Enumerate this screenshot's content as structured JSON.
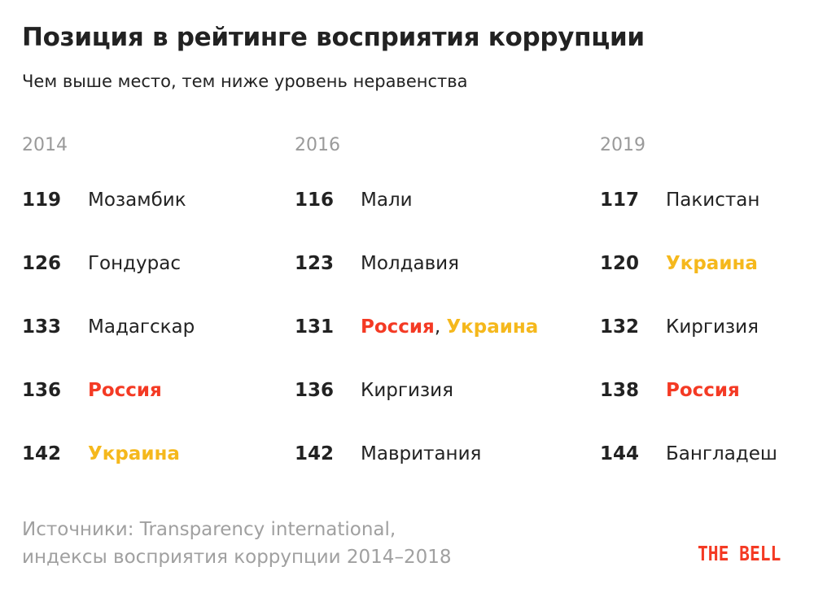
{
  "title": "Позиция в рейтинге восприятия коррупции",
  "subtitle": "Чем выше место, тем ниже уровень неравенства",
  "colors": {
    "russia": "#f43a24",
    "ukraine": "#f5b81c",
    "text": "#222222",
    "muted": "#9a9a9a",
    "logo": "#f43a24"
  },
  "chart_data": {
    "type": "table",
    "columns": [
      {
        "year": "2014",
        "rows": [
          {
            "rank": "119",
            "parts": [
              {
                "text": "Мозамбик"
              }
            ]
          },
          {
            "rank": "126",
            "parts": [
              {
                "text": "Гондурас"
              }
            ]
          },
          {
            "rank": "133",
            "parts": [
              {
                "text": "Мадагскар"
              }
            ]
          },
          {
            "rank": "136",
            "parts": [
              {
                "text": "Россия",
                "highlight": "russia"
              }
            ]
          },
          {
            "rank": "142",
            "parts": [
              {
                "text": "Украина",
                "highlight": "ukraine"
              }
            ]
          }
        ]
      },
      {
        "year": "2016",
        "rows": [
          {
            "rank": "116",
            "parts": [
              {
                "text": "Мали"
              }
            ]
          },
          {
            "rank": "123",
            "parts": [
              {
                "text": "Молдавия"
              }
            ]
          },
          {
            "rank": "131",
            "parts": [
              {
                "text": "Россия",
                "highlight": "russia"
              },
              {
                "text": ", "
              },
              {
                "text": "Украина",
                "highlight": "ukraine"
              }
            ]
          },
          {
            "rank": "136",
            "parts": [
              {
                "text": "Киргизия"
              }
            ]
          },
          {
            "rank": "142",
            "parts": [
              {
                "text": "Мавритания"
              }
            ]
          }
        ]
      },
      {
        "year": "2019",
        "rows": [
          {
            "rank": "117",
            "parts": [
              {
                "text": "Пакистан"
              }
            ]
          },
          {
            "rank": "120",
            "parts": [
              {
                "text": "Украина",
                "highlight": "ukraine"
              }
            ]
          },
          {
            "rank": "132",
            "parts": [
              {
                "text": "Киргизия"
              }
            ]
          },
          {
            "rank": "138",
            "parts": [
              {
                "text": "Россия",
                "highlight": "russia"
              }
            ]
          },
          {
            "rank": "144",
            "parts": [
              {
                "text": "Бангладеш"
              }
            ]
          }
        ]
      }
    ]
  },
  "source": {
    "line1": "Источники: Transparency international,",
    "line2": "индексы восприятия коррупции 2014–2018"
  },
  "logo": "THE BELL"
}
